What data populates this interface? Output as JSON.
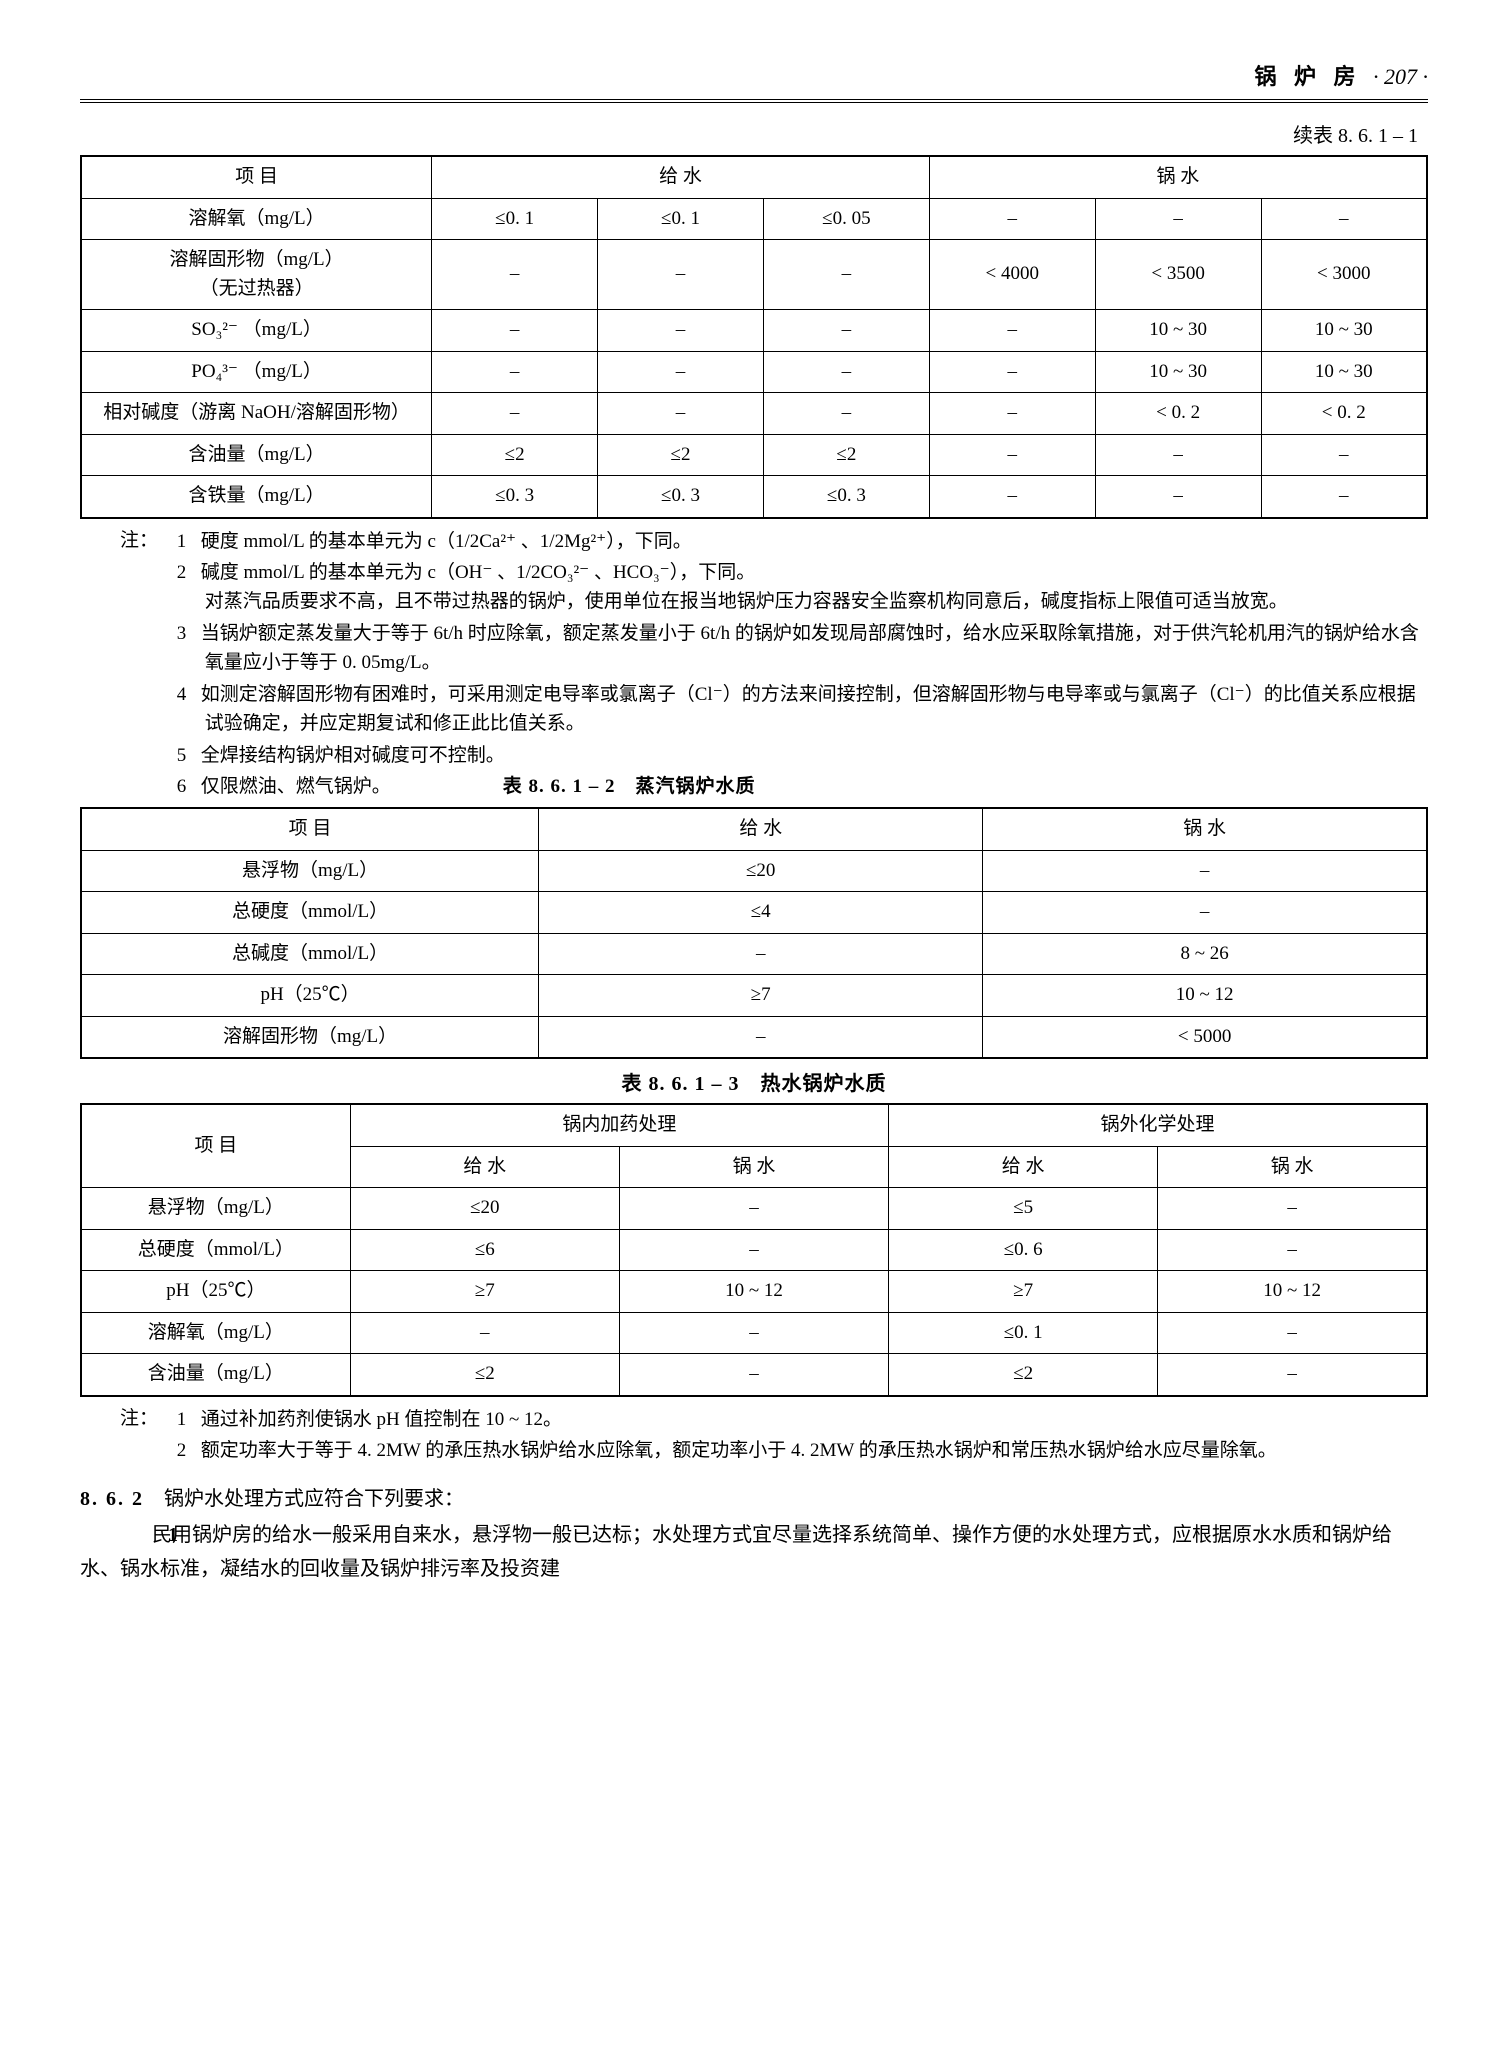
{
  "header": {
    "title": "锅 炉 房",
    "page": "· 207 ·"
  },
  "table1": {
    "caption": "续表 8. 6. 1 – 1",
    "head": {
      "item": "项 目",
      "feed": "给 水",
      "boiler": "锅 水"
    },
    "rows": [
      {
        "label": "溶解氧（mg/L）",
        "c": [
          "≤0. 1",
          "≤0. 1",
          "≤0. 05",
          "–",
          "–",
          "–"
        ]
      },
      {
        "label": "溶解固形物（mg/L）\n（无过热器）",
        "c": [
          "–",
          "–",
          "–",
          "< 4000",
          "< 3500",
          "< 3000"
        ]
      },
      {
        "label": "SO₃²⁻ （mg/L）",
        "c": [
          "–",
          "–",
          "–",
          "–",
          "10 ~ 30",
          "10 ~ 30"
        ]
      },
      {
        "label": "PO₄³⁻ （mg/L）",
        "c": [
          "–",
          "–",
          "–",
          "–",
          "10 ~ 30",
          "10 ~ 30"
        ]
      },
      {
        "label": "相对碱度（游离 NaOH/溶解固形物）",
        "c": [
          "–",
          "–",
          "–",
          "–",
          "< 0. 2",
          "< 0. 2"
        ]
      },
      {
        "label": "含油量（mg/L）",
        "c": [
          "≤2",
          "≤2",
          "≤2",
          "–",
          "–",
          "–"
        ]
      },
      {
        "label": "含铁量（mg/L）",
        "c": [
          "≤0. 3",
          "≤0. 3",
          "≤0. 3",
          "–",
          "–",
          "–"
        ]
      }
    ]
  },
  "notes1": {
    "lead": "注：",
    "items": [
      "硬度 mmol/L 的基本单元为 c（1/2Ca²⁺ 、1/2Mg²⁺），下同。",
      "碱度 mmol/L 的基本单元为 c（OH⁻ 、1/2CO₃²⁻ 、HCO₃⁻），下同。\n对蒸汽品质要求不高，且不带过热器的锅炉，使用单位在报当地锅炉压力容器安全监察机构同意后，碱度指标上限值可适当放宽。",
      "当锅炉额定蒸发量大于等于 6t/h 时应除氧，额定蒸发量小于 6t/h 的锅炉如发现局部腐蚀时，给水应采取除氧措施，对于供汽轮机用汽的锅炉给水含氧量应小于等于 0. 05mg/L。",
      "如测定溶解固形物有困难时，可采用测定电导率或氯离子（Cl⁻）的方法来间接控制，但溶解固形物与电导率或与氯离子（Cl⁻）的比值关系应根据试验确定，并应定期复试和修正此比值关系。",
      "全焊接结构锅炉相对碱度可不控制。",
      "仅限燃油、燃气锅炉。"
    ],
    "inline_title": "表 8. 6. 1 – 2　蒸汽锅炉水质"
  },
  "table2": {
    "head": {
      "item": "项 目",
      "feed": "给 水",
      "boiler": "锅 水"
    },
    "rows": [
      {
        "label": "悬浮物（mg/L）",
        "feed": "≤20",
        "boiler": "–"
      },
      {
        "label": "总硬度（mmol/L）",
        "feed": "≤4",
        "boiler": "–"
      },
      {
        "label": "总碱度（mmol/L）",
        "feed": "–",
        "boiler": "8 ~ 26"
      },
      {
        "label": "pH（25℃）",
        "feed": "≥7",
        "boiler": "10 ~ 12"
      },
      {
        "label": "溶解固形物（mg/L）",
        "feed": "–",
        "boiler": "< 5000"
      }
    ]
  },
  "table3": {
    "caption": "表 8. 6. 1 – 3　热水锅炉水质",
    "head": {
      "item": "项 目",
      "grp1": "锅内加药处理",
      "grp2": "锅外化学处理",
      "feed": "给 水",
      "boiler": "锅 水"
    },
    "rows": [
      {
        "label": "悬浮物（mg/L）",
        "c": [
          "≤20",
          "–",
          "≤5",
          "–"
        ]
      },
      {
        "label": "总硬度（mmol/L）",
        "c": [
          "≤6",
          "–",
          "≤0. 6",
          "–"
        ]
      },
      {
        "label": "pH（25℃）",
        "c": [
          "≥7",
          "10 ~ 12",
          "≥7",
          "10 ~ 12"
        ]
      },
      {
        "label": "溶解氧（mg/L）",
        "c": [
          "–",
          "–",
          "≤0. 1",
          "–"
        ]
      },
      {
        "label": "含油量（mg/L）",
        "c": [
          "≤2",
          "–",
          "≤2",
          "–"
        ]
      }
    ]
  },
  "notes2": {
    "lead": "注：",
    "items": [
      "通过补加药剂使锅水 pH 值控制在 10 ~ 12。",
      "额定功率大于等于 4. 2MW 的承压热水锅炉给水应除氧，额定功率小于 4. 2MW 的承压热水锅炉和常压热水锅炉给水应尽量除氧。"
    ]
  },
  "section": {
    "num": "8. 6. 2",
    "title": "锅炉水处理方式应符合下列要求：",
    "items": [
      "民用锅炉房的给水一般采用自来水，悬浮物一般已达标；水处理方式宜尽量选择系统简单、操作方便的水处理方式，应根据原水水质和锅炉给水、锅水标准，凝结水的回收量及锅炉排污率及投资建"
    ]
  }
}
